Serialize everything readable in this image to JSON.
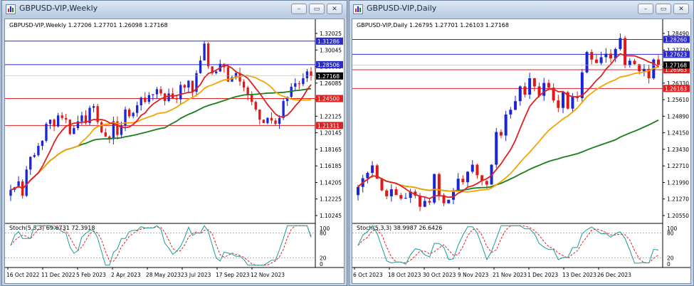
{
  "windows": [
    {
      "title": "GBPUSD-VIP,Weekly",
      "header": "GBPUSD-VIP,Weekly  1.27206 1.27701 1.26098 1.27168",
      "stoch_label": "Stoch(5,3,3) 69.6731 72.3918",
      "buttons": {
        "minimize": "–",
        "restore": "▭",
        "close": "✕"
      }
    },
    {
      "title": "GBPUSD-VIP,Daily",
      "header": "GBPUSD-VIP,Daily  1.26795 1.27701 1.26103 1.27168",
      "stoch_label": "Stoch(5,3,3) 38.9987 26.6426",
      "buttons": {
        "minimize": "–",
        "restore": "▭",
        "close": "✕"
      }
    }
  ],
  "colors": {
    "bull": "#1a25d6",
    "bear": "#e01818",
    "ma_fast": "#e02020",
    "ma_mid": "#f5a300",
    "ma_slow": "#1b7d1b",
    "stoch_main": "#1e9a9a",
    "stoch_signal": "#e02020",
    "hline_blue": "#2a2ad0",
    "hline_red": "#e02020"
  },
  "chart_data": [
    {
      "type": "candlestick",
      "symbol": "GBPUSD-VIP",
      "timeframe": "Weekly",
      "ylim": [
        1.099,
        1.327
      ],
      "price_ticks": [
        "1.32025",
        "1.30045",
        "1.28065",
        "1.26085",
        "1.24105",
        "1.22125",
        "1.20145",
        "1.18165",
        "1.16185",
        "1.14205",
        "1.12225",
        "1.10245"
      ],
      "time_ticks": [
        "16 Oct 2022",
        "11 Dec 2022",
        "5 Feb 2023",
        "2 Apr 2023",
        "28 May 2023",
        "23 Jul 2023",
        "17 Sep 2023",
        "12 Nov 2023"
      ],
      "levels": [
        {
          "value": "1.31286",
          "color": "blue"
        },
        {
          "value": "1.28506",
          "color": "blue"
        },
        {
          "value": "1.24500",
          "color": "red"
        },
        {
          "value": "1.21311",
          "color": "red"
        }
      ],
      "current_price": "1.27168",
      "closes": [
        1.137,
        1.14,
        1.147,
        1.13,
        1.161,
        1.176,
        1.178,
        1.189,
        1.195,
        1.215,
        1.22,
        1.212,
        1.225,
        1.222,
        1.22,
        1.203,
        1.21,
        1.218,
        1.225,
        1.216,
        1.234,
        1.236,
        1.217,
        1.205,
        1.2,
        1.197,
        1.218,
        1.202,
        1.213,
        1.232,
        1.224,
        1.228,
        1.237,
        1.246,
        1.241,
        1.249,
        1.25,
        1.256,
        1.251,
        1.242,
        1.251,
        1.245,
        1.244,
        1.261,
        1.258,
        1.266,
        1.253,
        1.275,
        1.29,
        1.31,
        1.283,
        1.275,
        1.277,
        1.286,
        1.282,
        1.265,
        1.27,
        1.275,
        1.265,
        1.258,
        1.249,
        1.241,
        1.232,
        1.22,
        1.216,
        1.222,
        1.219,
        1.215,
        1.222,
        1.242,
        1.247,
        1.259,
        1.263,
        1.262,
        1.269,
        1.277,
        1.272
      ],
      "stoch": {
        "main_last": 69.6731,
        "signal_last": 72.3918
      }
    },
    {
      "type": "candlestick",
      "symbol": "GBPUSD-VIP",
      "timeframe": "Daily",
      "ylim": [
        1.2045,
        1.287
      ],
      "price_ticks": [
        "1.28490",
        "1.27720",
        "1.26950",
        "1.26330",
        "1.25610",
        "1.24890",
        "1.24150",
        "1.23430",
        "1.22710",
        "1.21990",
        "1.21270",
        "1.20550"
      ],
      "time_ticks": [
        "6 Oct 2023",
        "18 Oct 2023",
        "30 Oct 2023",
        "9 Nov 2023",
        "21 Nov 2023",
        "1 Dec 2023",
        "13 Dec 2023",
        "26 Dec 2023"
      ],
      "levels": [
        {
          "value": "1.28260",
          "color": "blue"
        },
        {
          "value": "1.27623",
          "color": "blue"
        },
        {
          "value": "1.26963",
          "color": "red"
        },
        {
          "value": "1.26163",
          "color": "red"
        }
      ],
      "current_price": "1.27168",
      "closes": [
        1.2195,
        1.2232,
        1.2255,
        1.2287,
        1.223,
        1.218,
        1.2155,
        1.2185,
        1.216,
        1.2145,
        1.2148,
        1.2175,
        1.2158,
        1.211,
        1.2135,
        1.2128,
        1.225,
        1.216,
        1.2125,
        1.214,
        1.2175,
        1.223,
        1.2215,
        1.226,
        1.229,
        1.2245,
        1.222,
        1.2205,
        1.229,
        1.243,
        1.2415,
        1.2505,
        1.2525,
        1.2562,
        1.2625,
        1.259,
        1.266,
        1.2625,
        1.2585,
        1.264,
        1.262,
        1.2565,
        1.2533,
        1.26,
        1.253,
        1.258,
        1.2575,
        1.2685,
        1.2772,
        1.274,
        1.2725,
        1.275,
        1.2765,
        1.2745,
        1.2785,
        1.2832,
        1.2715,
        1.2735,
        1.272,
        1.269,
        1.27,
        1.266,
        1.274,
        1.2717
      ],
      "stoch": {
        "main_last": 38.9987,
        "signal_last": 26.6426
      }
    }
  ]
}
